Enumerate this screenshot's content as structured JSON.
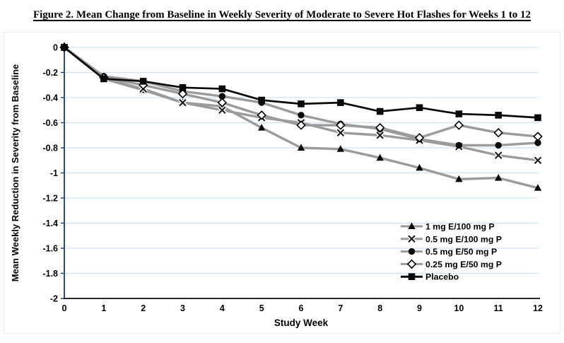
{
  "figure": {
    "title": "Figure 2.  Mean Change from Baseline in Weekly Severity of Moderate to Severe Hot Flashes for Weeks 1 to 12"
  },
  "colors": {
    "gridline": "#cfe3f0",
    "axis": "#1f3864",
    "black": "#0a0a0a",
    "gray_series": "#9b9b9b",
    "marker_halo": "#ffffff"
  },
  "chart_data": {
    "type": "line",
    "title": "Figure 2.  Mean Change from Baseline in Weekly Severity of Moderate to Severe Hot Flashes for Weeks 1 to 12",
    "xlabel": "Study Week",
    "ylabel": "Mean Weekly Reduction in Severity from Baseline",
    "x": [
      0,
      1,
      2,
      3,
      4,
      5,
      6,
      7,
      8,
      9,
      10,
      11,
      12
    ],
    "xlim": [
      0,
      12
    ],
    "ylim": [
      -2,
      0
    ],
    "grid": "horizontal light-blue gridlines every 0.2",
    "legend_position": "inside bottom-right, no border",
    "ytick_values": [
      0,
      -0.2,
      -0.4,
      -0.6,
      -0.8,
      -1,
      -1.2,
      -1.4,
      -1.6,
      -1.8,
      -2
    ],
    "ytick_labels": [
      "0",
      "-0.2",
      "-0.4",
      "-0.6",
      "-0.8",
      "-1",
      "-1.2",
      "-1.4",
      "-1.6",
      "-1.8",
      "-2"
    ],
    "series": [
      {
        "name": "1 mg E/100 mg P",
        "marker": "triangle",
        "marker_color": "#0a0a0a",
        "line_color": "#9b9b9b",
        "line_width": 3.4,
        "values": [
          0,
          -0.25,
          -0.34,
          -0.44,
          -0.47,
          -0.64,
          -0.8,
          -0.81,
          -0.88,
          -0.96,
          -1.05,
          -1.04,
          -1.12
        ]
      },
      {
        "name": "0.5 mg E/100 mg P",
        "marker": "x",
        "marker_color": "#1a1a1a",
        "line_color": "#9b9b9b",
        "line_width": 3.4,
        "values": [
          0,
          -0.25,
          -0.33,
          -0.44,
          -0.5,
          -0.56,
          -0.6,
          -0.68,
          -0.7,
          -0.74,
          -0.79,
          -0.86,
          -0.9
        ]
      },
      {
        "name": "0.5 mg E/50 mg P",
        "marker": "circle",
        "marker_color": "#0a0a0a",
        "line_color": "#9b9b9b",
        "line_width": 3.4,
        "values": [
          0,
          -0.23,
          -0.27,
          -0.35,
          -0.39,
          -0.44,
          -0.54,
          -0.61,
          -0.65,
          -0.73,
          -0.78,
          -0.78,
          -0.76
        ]
      },
      {
        "name": "0.25 mg E/50 mg P",
        "marker": "diamond",
        "marker_color": "#000000",
        "line_color": "#9b9b9b",
        "line_width": 3.4,
        "values": [
          0,
          -0.24,
          -0.3,
          -0.37,
          -0.44,
          -0.54,
          -0.62,
          -0.62,
          -0.64,
          -0.72,
          -0.62,
          -0.68,
          -0.71
        ]
      },
      {
        "name": "Placebo",
        "marker": "square",
        "marker_color": "#0a0a0a",
        "line_color": "#0a0a0a",
        "line_width": 2.7,
        "values": [
          0,
          -0.25,
          -0.27,
          -0.32,
          -0.33,
          -0.42,
          -0.45,
          -0.44,
          -0.51,
          -0.48,
          -0.53,
          -0.54,
          -0.56
        ]
      }
    ]
  }
}
